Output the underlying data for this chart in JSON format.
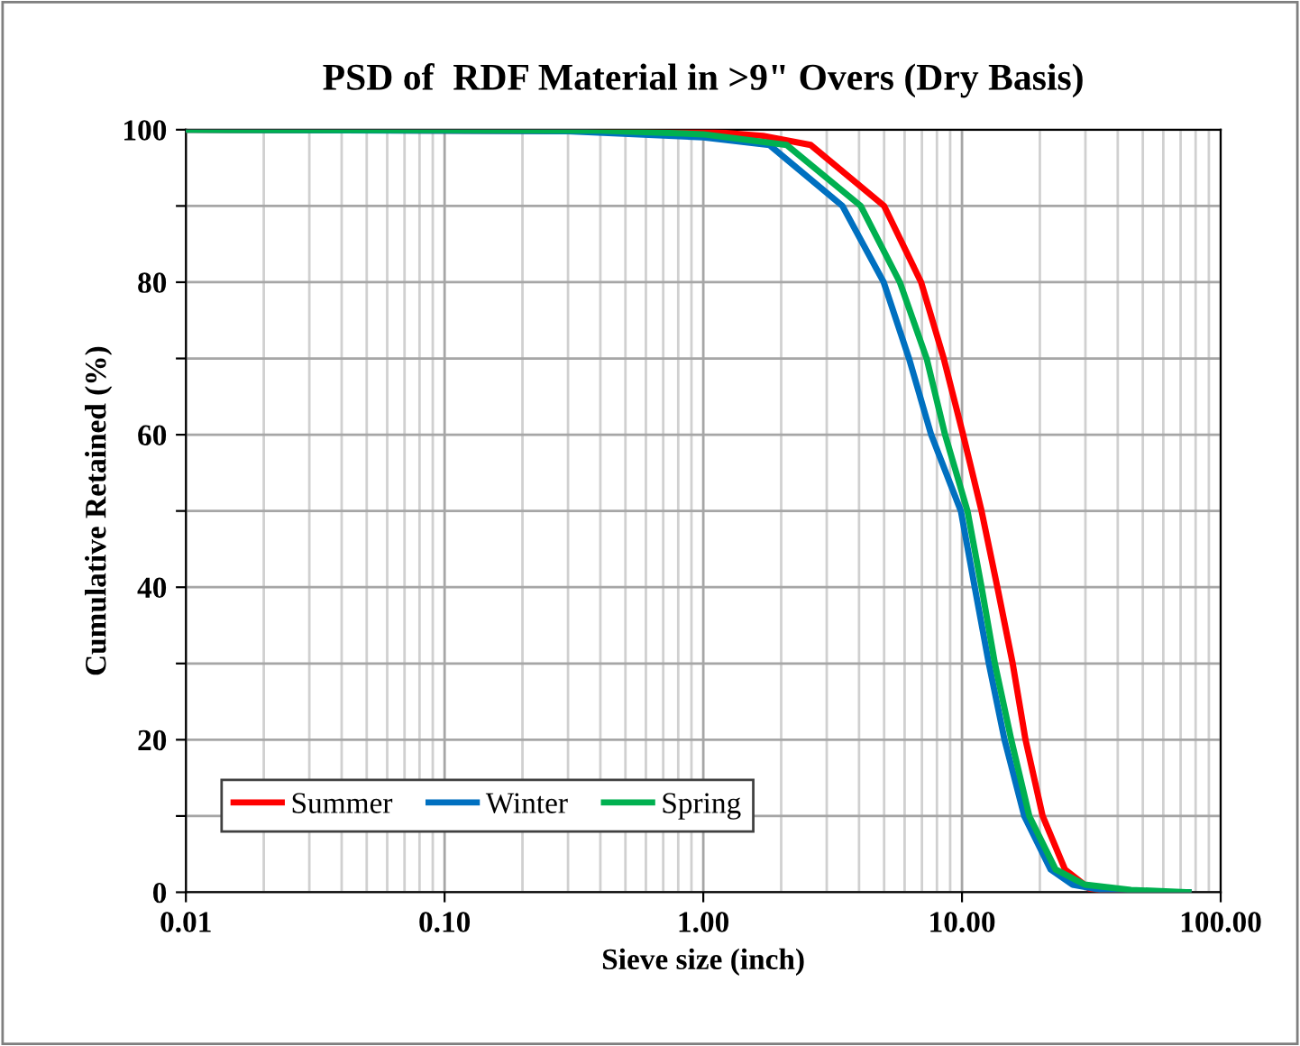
{
  "chart_data": {
    "type": "line",
    "title": "PSD of  RDF Material in >9\" Overs (Dry Basis)",
    "xlabel": "Sieve size (inch)",
    "ylabel": "Cumulative Retained (%)",
    "log": "x",
    "grid": true,
    "legend": "bottom left",
    "marker": "none",
    "line_style": "solid",
    "xlim": [
      0.01,
      100
    ],
    "xticks": [
      {
        "value": 0.01,
        "label": "0.01"
      },
      {
        "value": 0.1,
        "label": "0.10"
      },
      {
        "value": 1,
        "label": "1.00"
      },
      {
        "value": 10,
        "label": "10.00"
      },
      {
        "value": 100,
        "label": "100.00"
      }
    ],
    "ylim": [
      0,
      100
    ],
    "yticks": [
      0,
      {
        "value": 10,
        "label": null
      },
      20,
      {
        "value": 30,
        "label": null
      },
      40,
      {
        "value": 50,
        "label": null
      },
      60,
      {
        "value": 70,
        "label": null
      },
      80,
      {
        "value": 90,
        "label": null
      },
      100
    ],
    "series": [
      {
        "name": "Summer",
        "color": "#ff0000",
        "x": [
          0.01,
          1.0,
          1.7,
          2.6,
          5.0,
          6.95,
          8.5,
          10.1,
          11.9,
          13.7,
          15.7,
          17.6,
          20.5,
          25,
          31,
          39,
          75
        ],
        "values": [
          100,
          99.8,
          99.2,
          98,
          90,
          80,
          70,
          60,
          50,
          40,
          30,
          20,
          10,
          3,
          0.5,
          0,
          0
        ]
      },
      {
        "name": "Winter",
        "color": "#0070c0",
        "x": [
          0.01,
          0.3,
          1.0,
          1.8,
          3.45,
          4.98,
          6.24,
          7.6,
          9.9,
          11.2,
          12.7,
          14.6,
          17.4,
          22,
          26.7,
          39,
          75
        ],
        "values": [
          100,
          99.8,
          99,
          98,
          90,
          80,
          70,
          60,
          50,
          40,
          30,
          20,
          10,
          3,
          1,
          0,
          0
        ]
      },
      {
        "name": "Spring",
        "color": "#00b050",
        "x": [
          0.01,
          0.4,
          1.0,
          2.1,
          4.06,
          5.75,
          7.3,
          8.6,
          10.5,
          11.9,
          13.4,
          15.5,
          18.2,
          23,
          29.8,
          45,
          75
        ],
        "values": [
          100,
          99.9,
          99.4,
          98,
          90,
          80,
          70,
          60,
          50,
          40,
          30,
          20,
          10,
          3,
          1,
          0.3,
          0
        ]
      }
    ]
  }
}
